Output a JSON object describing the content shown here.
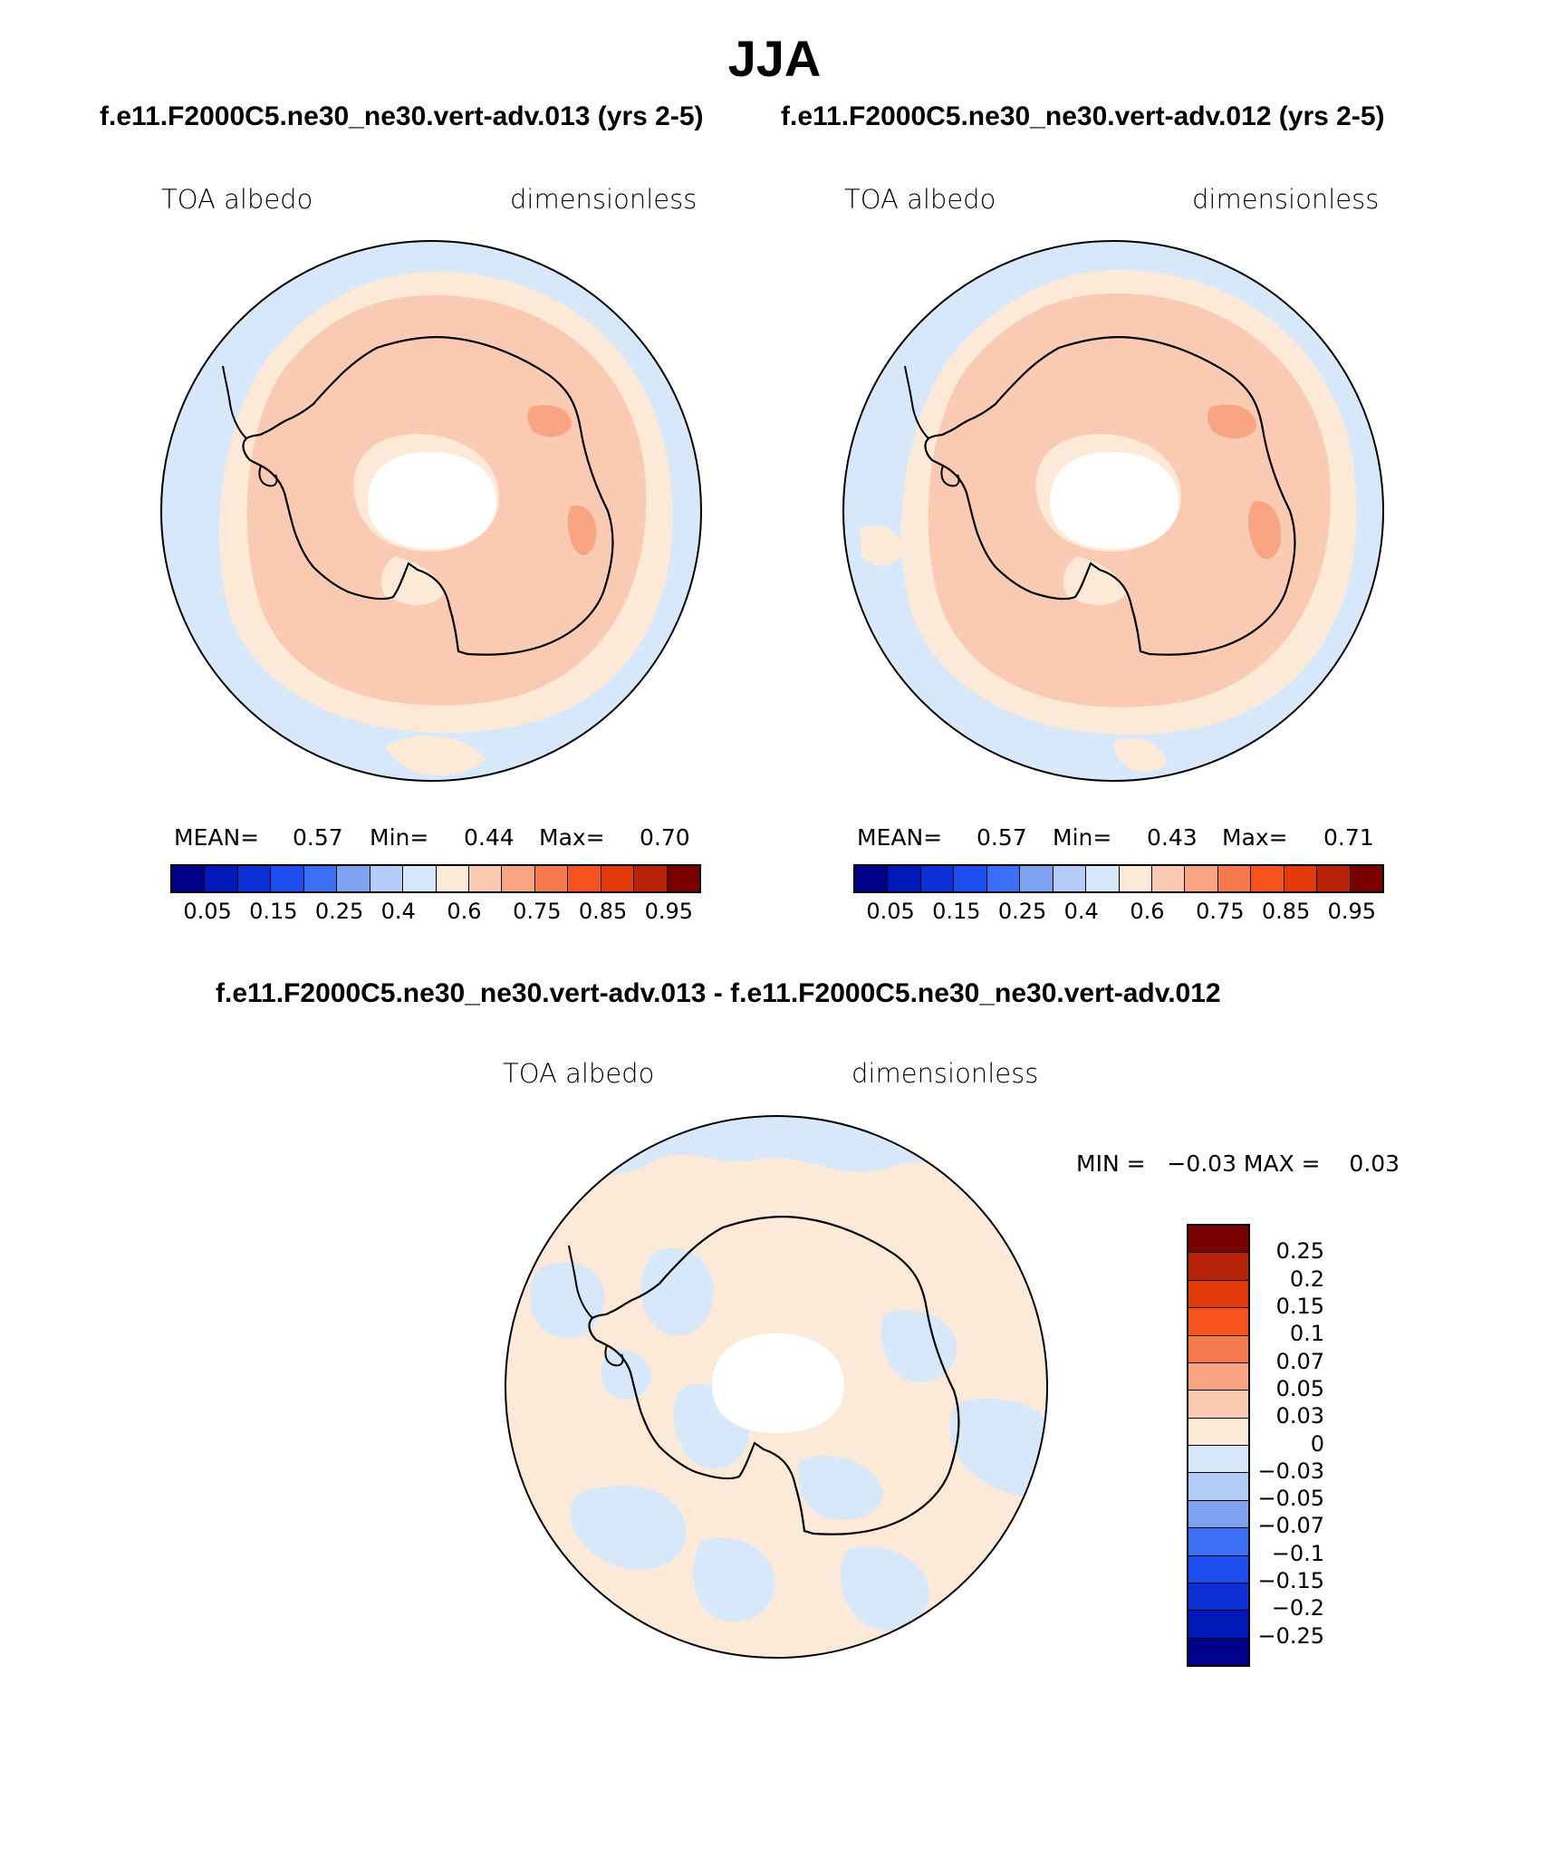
{
  "title": "JJA",
  "panels": {
    "left": {
      "case": "f.e11.F2000C5.ne30_ne30.vert-adv.013 (yrs 2-5)",
      "variable": "TOA albedo",
      "units": "dimensionless",
      "mean_label": "MEAN=",
      "mean": "0.57",
      "min_label": "Min=",
      "min": "0.44",
      "max_label": "Max=",
      "max": "0.70"
    },
    "right": {
      "case": "f.e11.F2000C5.ne30_ne30.vert-adv.012 (yrs 2-5)",
      "variable": "TOA albedo",
      "units": "dimensionless",
      "mean_label": "MEAN=",
      "mean": "0.57",
      "min_label": "Min=",
      "min": "0.43",
      "max_label": "Max=",
      "max": "0.71"
    },
    "diff": {
      "title": "f.e11.F2000C5.ne30_ne30.vert-adv.013 - f.e11.F2000C5.ne30_ne30.vert-adv.012",
      "variable": "TOA albedo",
      "units": "dimensionless",
      "minmax": "MIN =   −0.03 MAX =    0.03"
    }
  },
  "colorbar_main": {
    "colors": [
      "#00008b",
      "#0018b8",
      "#0c2fd6",
      "#1f4cf0",
      "#3a6ef5",
      "#7ea1f0",
      "#b4cbf7",
      "#d8e8fb",
      "#fde9d8",
      "#fbcab2",
      "#f9a583",
      "#f77a4e",
      "#f5521e",
      "#e33a0c",
      "#b8220a",
      "#7a0000"
    ],
    "ticks": [
      "0.05",
      "0.15",
      "0.25",
      "0.4",
      "0.6",
      "0.75",
      "0.85",
      "0.95"
    ]
  },
  "colorbar_diff": {
    "colors_top_to_bottom": [
      "#7a0000",
      "#b8220a",
      "#e33a0c",
      "#f5521e",
      "#f77a4e",
      "#f9a583",
      "#fbcab2",
      "#fde9d8",
      "#d8e8fb",
      "#b4cbf7",
      "#7ea1f0",
      "#3a6ef5",
      "#1f4cf0",
      "#0c2fd6",
      "#0018b8",
      "#00008b"
    ],
    "ticks": [
      "0.25",
      "0.2",
      "0.15",
      "0.1",
      "0.07",
      "0.05",
      "0.03",
      "0",
      "−0.03",
      "−0.05",
      "−0.07",
      "−0.1",
      "−0.15",
      "−0.2",
      "−0.25"
    ]
  },
  "map_colors": {
    "ocean": "#d8e8fb",
    "light_peach": "#fde9d8",
    "peach": "#fbcab2",
    "salmon": "#f9a583",
    "pole": "#ffffff"
  }
}
